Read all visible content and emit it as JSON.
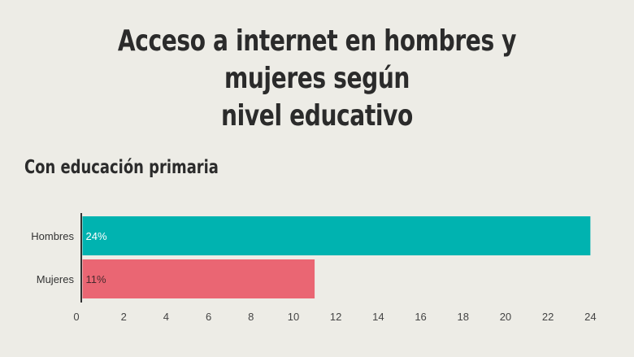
{
  "header": {
    "title_line1": "Acceso a internet en hombres y mujeres según",
    "title_line2": "nivel educativo",
    "subtitle": "Con educación primaria"
  },
  "colors": {
    "background": "#edece6",
    "hombres": "#00b3b0",
    "mujeres": "#ea6673",
    "text": "#2b2b2b"
  },
  "chart_data": {
    "type": "bar",
    "orientation": "horizontal",
    "title": "Con educación primaria",
    "categories": [
      "Hombres",
      "Mujeres"
    ],
    "values": [
      24,
      11
    ],
    "bar_value_labels": [
      "24%",
      "11%"
    ],
    "xlim": [
      0,
      24.6
    ],
    "x_ticks": [
      0,
      2,
      4,
      6,
      8,
      10,
      12,
      14,
      16,
      18,
      20,
      22,
      24
    ],
    "xlabel": "",
    "ylabel": "",
    "grid": false,
    "legend": "none"
  }
}
